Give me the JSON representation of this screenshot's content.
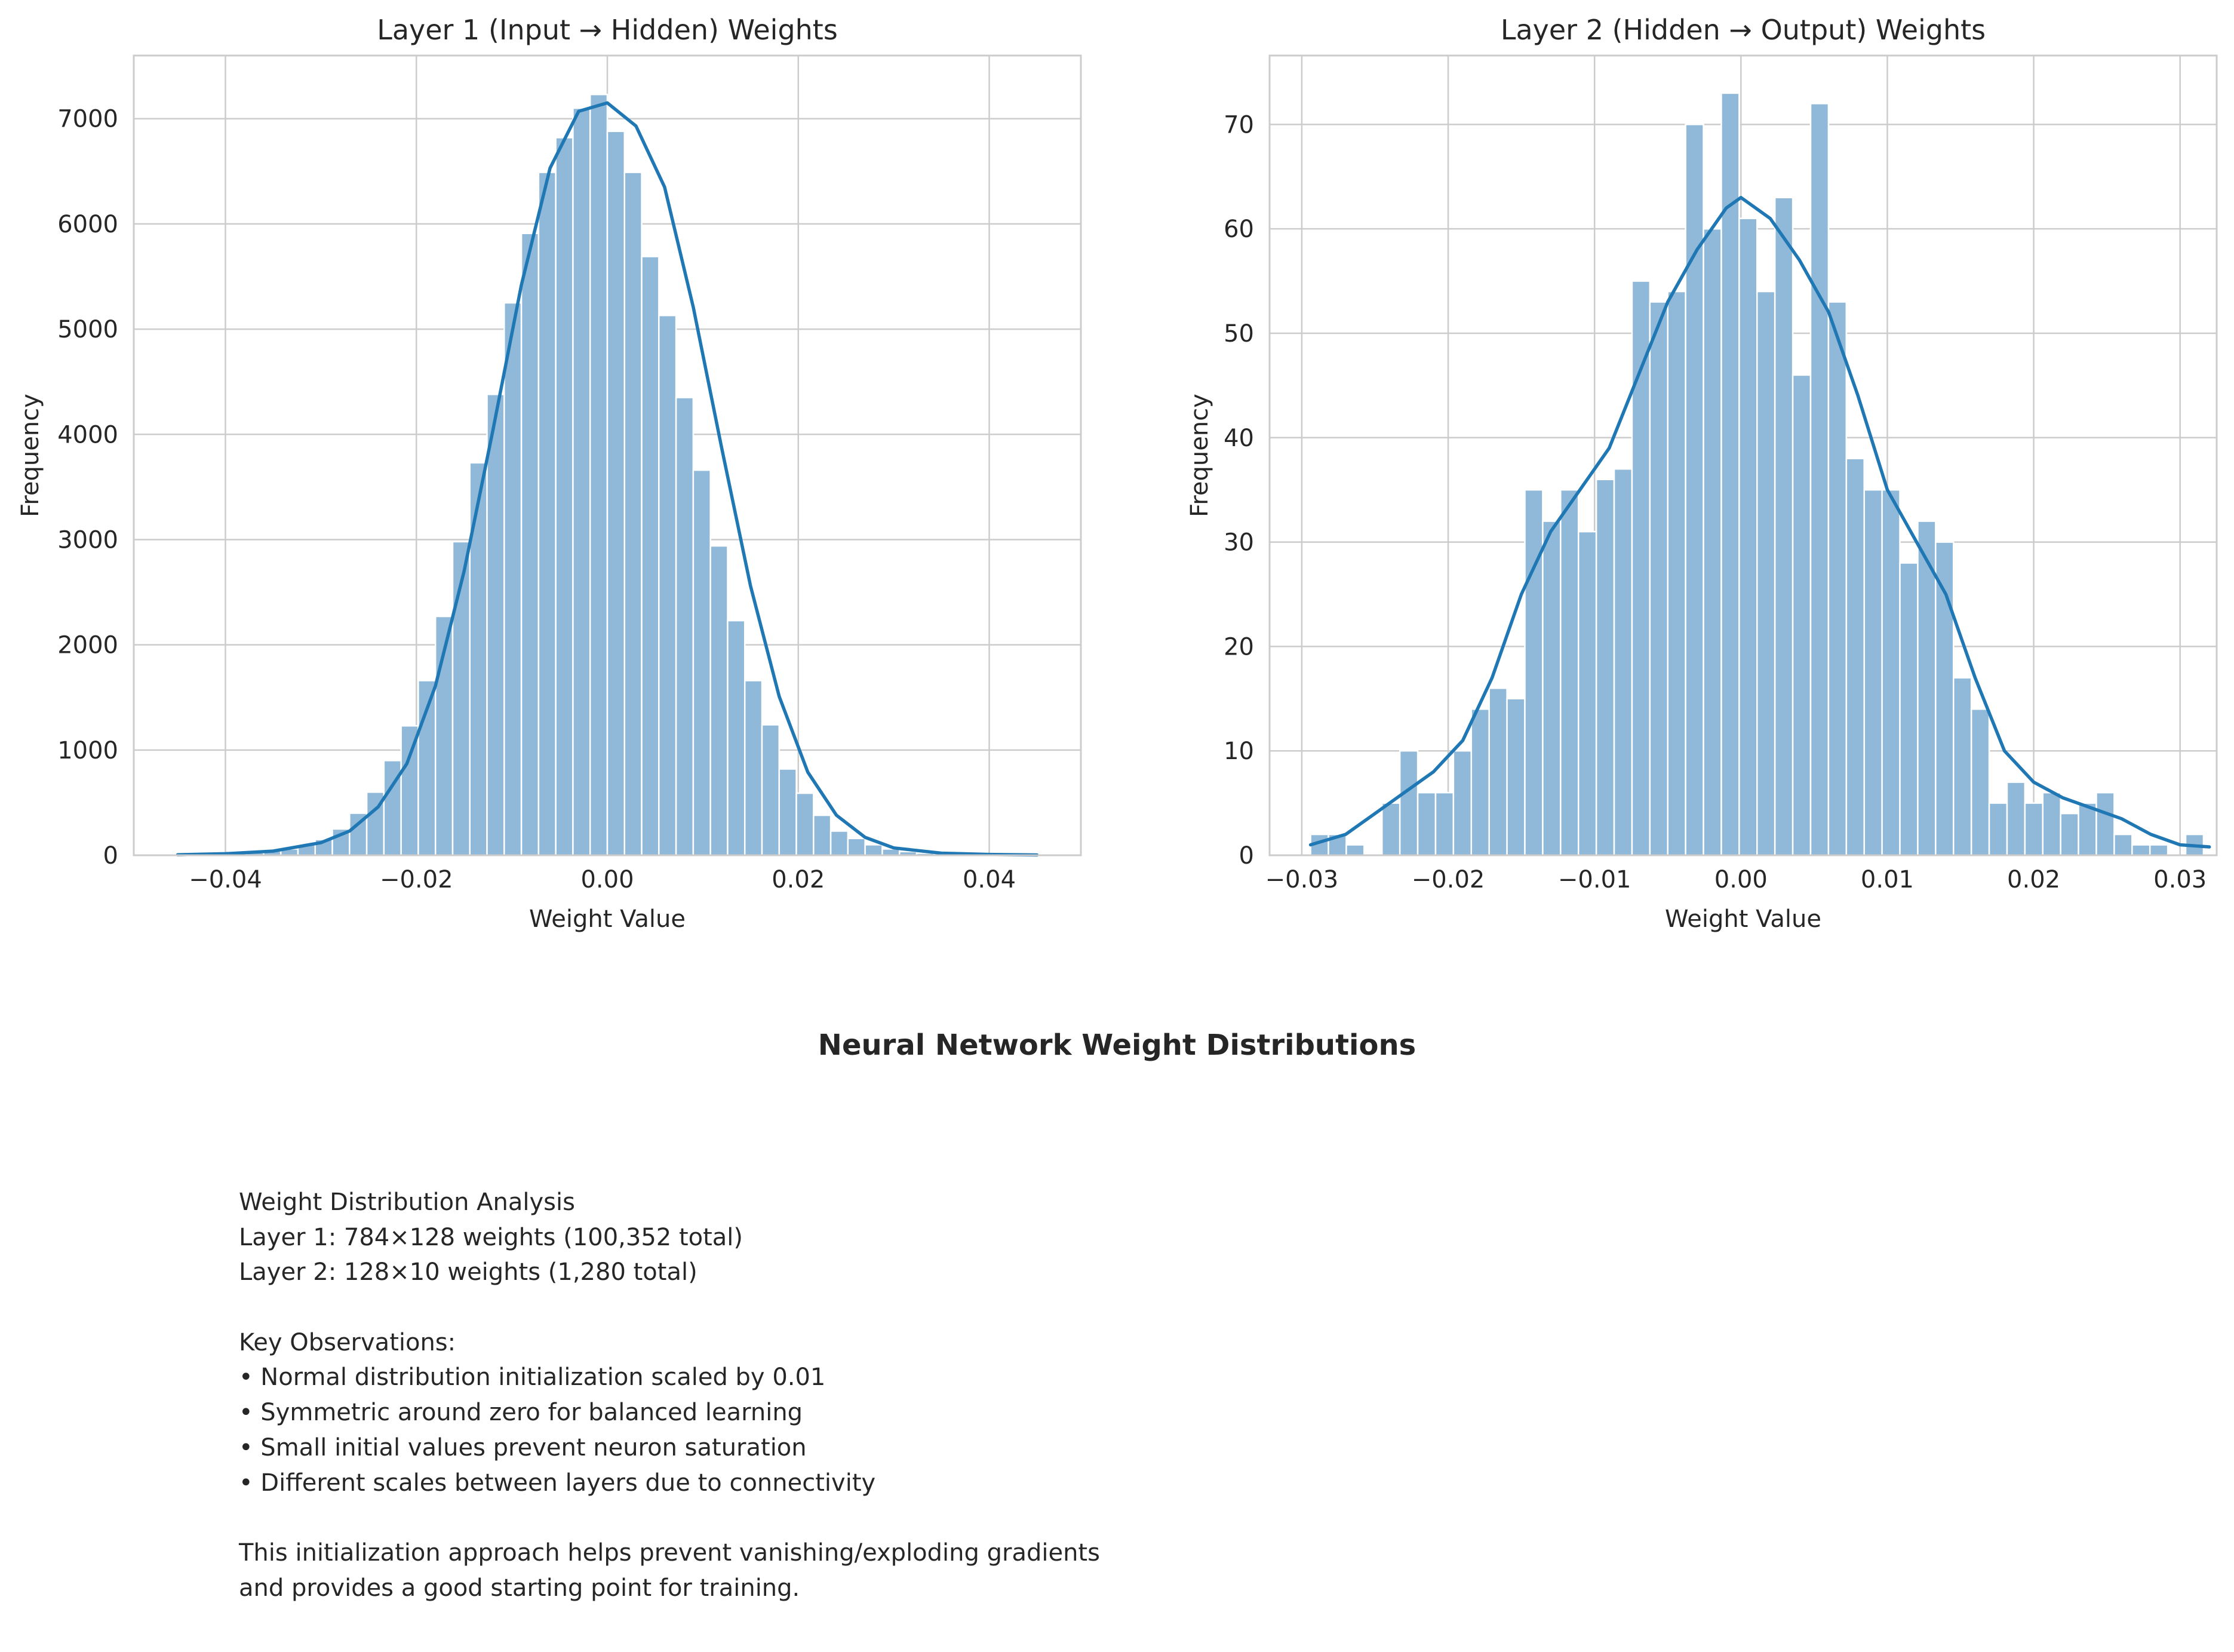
{
  "figure": {
    "suptitle": "Neural Network Weight Distributions",
    "colors": {
      "bar_fill": "#90b9d9",
      "bar_edge": "#ffffff",
      "kde_line": "#1f77b4",
      "grid": "#cccccc",
      "axis_frame": "#cccccc"
    }
  },
  "chart_data": [
    {
      "type": "bar",
      "variant": "histogram_with_kde",
      "title": "Layer 1 (Input → Hidden) Weights",
      "xlabel": "Weight Value",
      "ylabel": "Frequency",
      "xlim": [
        -0.0496,
        0.0496
      ],
      "ylim": [
        0,
        7600
      ],
      "xticks": [
        -0.04,
        -0.02,
        0.0,
        0.02,
        0.04
      ],
      "xtick_labels": [
        "−0.04",
        "−0.02",
        "0.00",
        "0.02",
        "0.04"
      ],
      "yticks": [
        0,
        1000,
        2000,
        3000,
        4000,
        5000,
        6000,
        7000
      ],
      "ytick_labels": [
        "0",
        "1000",
        "2000",
        "3000",
        "4000",
        "5000",
        "6000",
        "7000"
      ],
      "grid": true,
      "bin_start": -0.045,
      "bin_width": 0.0018,
      "values": [
        5,
        8,
        12,
        18,
        25,
        40,
        60,
        100,
        150,
        250,
        400,
        600,
        900,
        1230,
        1660,
        2270,
        2980,
        3730,
        4380,
        5250,
        5910,
        6490,
        6820,
        7100,
        7230,
        6880,
        6490,
        5690,
        5130,
        4350,
        3660,
        2940,
        2230,
        1660,
        1240,
        820,
        590,
        380,
        230,
        160,
        100,
        60,
        35,
        20,
        12,
        8,
        5,
        3,
        2,
        1
      ],
      "kde": {
        "x": [
          -0.045,
          -0.04,
          -0.035,
          -0.03,
          -0.027,
          -0.024,
          -0.021,
          -0.018,
          -0.015,
          -0.012,
          -0.009,
          -0.006,
          -0.003,
          0.0,
          0.003,
          0.006,
          0.009,
          0.012,
          0.015,
          0.018,
          0.021,
          0.024,
          0.027,
          0.03,
          0.035,
          0.04,
          0.045
        ],
        "y": [
          5,
          15,
          40,
          120,
          230,
          460,
          870,
          1610,
          2700,
          4030,
          5420,
          6530,
          7070,
          7150,
          6930,
          6350,
          5210,
          3860,
          2560,
          1510,
          790,
          380,
          170,
          70,
          20,
          8,
          3
        ]
      }
    },
    {
      "type": "bar",
      "variant": "histogram_with_kde",
      "title": "Layer 2 (Hidden → Output) Weights",
      "xlabel": "Weight Value",
      "ylabel": "Frequency",
      "xlim": [
        -0.0322,
        0.0325
      ],
      "ylim": [
        0,
        76.6
      ],
      "xticks": [
        -0.03,
        -0.02,
        -0.01,
        0.0,
        0.01,
        0.02,
        0.03
      ],
      "xtick_labels": [
        "−0.03",
        "−0.02",
        "−0.01",
        "0.00",
        "0.01",
        "0.02",
        "0.03"
      ],
      "yticks": [
        0,
        10,
        20,
        30,
        40,
        50,
        60,
        70
      ],
      "ytick_labels": [
        "0",
        "10",
        "20",
        "30",
        "40",
        "50",
        "60",
        "70"
      ],
      "grid": true,
      "bin_start": -0.0294,
      "bin_width": 0.00122,
      "values": [
        2,
        2,
        1,
        0,
        5,
        10,
        6,
        6,
        10,
        14,
        16,
        15,
        35,
        32,
        35,
        31,
        36,
        37,
        55,
        53,
        54,
        70,
        60,
        73,
        61,
        54,
        63,
        46,
        72,
        53,
        38,
        35,
        35,
        28,
        32,
        30,
        17,
        14,
        5,
        7,
        5,
        6,
        4,
        5,
        6,
        2,
        1,
        1,
        0,
        2
      ],
      "kde": {
        "x": [
          -0.0294,
          -0.027,
          -0.025,
          -0.023,
          -0.021,
          -0.019,
          -0.017,
          -0.015,
          -0.013,
          -0.011,
          -0.009,
          -0.007,
          -0.005,
          -0.003,
          -0.001,
          0.0,
          0.002,
          0.004,
          0.006,
          0.008,
          0.01,
          0.012,
          0.014,
          0.016,
          0.018,
          0.02,
          0.022,
          0.024,
          0.026,
          0.028,
          0.03,
          0.032
        ],
        "y": [
          1,
          2,
          4,
          6,
          8,
          11,
          17,
          25,
          31,
          35,
          39,
          46,
          53,
          58,
          62,
          63,
          61,
          57,
          52,
          44,
          35,
          30,
          25,
          17,
          10,
          7,
          5.5,
          4.5,
          3.5,
          2,
          1,
          0.8
        ]
      }
    }
  ],
  "notes": {
    "lines": [
      "Weight Distribution Analysis",
      "Layer 1: 784×128 weights (100,352 total)",
      "Layer 2: 128×10 weights (1,280 total)",
      "",
      "Key Observations:",
      "• Normal distribution initialization scaled by 0.01",
      "• Symmetric around zero for balanced learning",
      "• Small initial values prevent neuron saturation",
      "• Different scales between layers due to connectivity",
      "",
      "This initialization approach helps prevent vanishing/exploding gradients",
      "and provides a good starting point for training."
    ]
  }
}
